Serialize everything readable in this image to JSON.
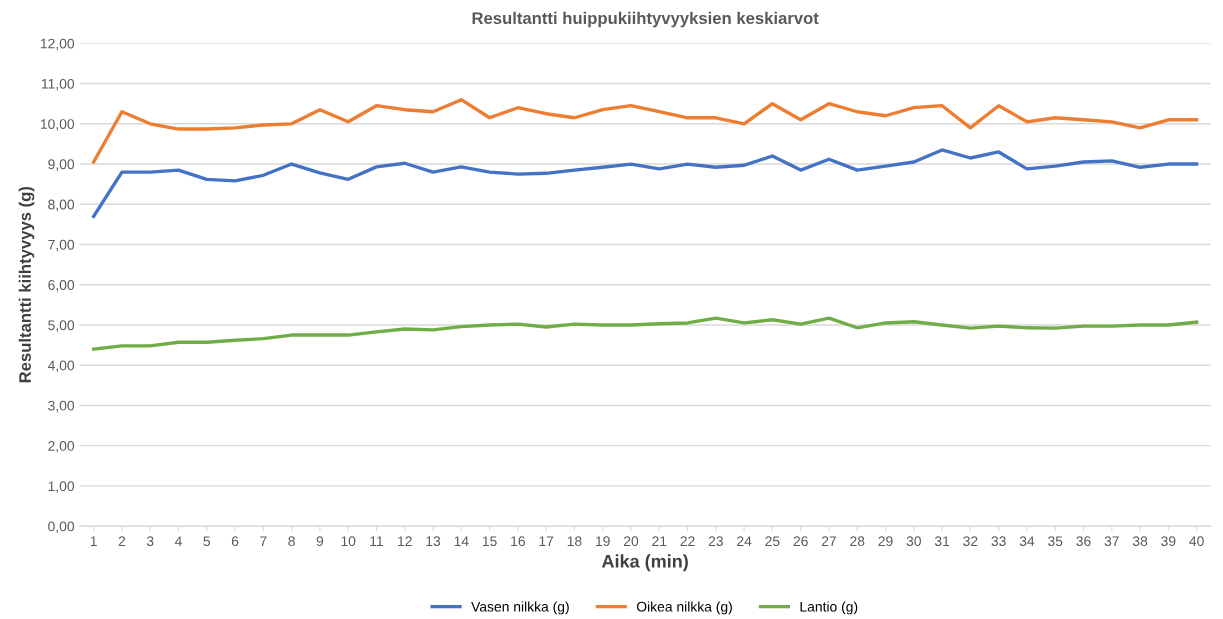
{
  "chart_data": {
    "type": "line",
    "title": "Resultantti huippukiihtyvyyksien keskiarvot",
    "xlabel": "Aika (min)",
    "ylabel": "Resultantti kiihtyvyys (g)",
    "categories": [
      "1",
      "2",
      "3",
      "4",
      "5",
      "6",
      "7",
      "8",
      "9",
      "10",
      "11",
      "12",
      "13",
      "14",
      "15",
      "16",
      "17",
      "18",
      "19",
      "20",
      "21",
      "22",
      "23",
      "24",
      "25",
      "26",
      "27",
      "28",
      "29",
      "30",
      "31",
      "32",
      "33",
      "34",
      "35",
      "36",
      "37",
      "38",
      "39",
      "40"
    ],
    "series": [
      {
        "name": "Vasen nilkka (g)",
        "color": "#4472c4",
        "values": [
          7.7,
          8.8,
          8.8,
          8.85,
          8.62,
          8.58,
          8.72,
          9.0,
          8.78,
          8.62,
          8.93,
          9.02,
          8.8,
          8.93,
          8.8,
          8.75,
          8.77,
          8.85,
          8.92,
          9.0,
          8.88,
          9.0,
          8.92,
          8.97,
          9.2,
          8.85,
          9.12,
          8.85,
          8.95,
          9.05,
          9.35,
          9.15,
          9.3,
          8.88,
          8.95,
          9.05,
          9.08,
          8.92,
          9.0,
          9.0
        ]
      },
      {
        "name": "Oikea nilkka (g)",
        "color": "#ed7d31",
        "values": [
          9.05,
          10.3,
          10.0,
          9.87,
          9.87,
          9.9,
          9.97,
          10.0,
          10.35,
          10.05,
          10.45,
          10.35,
          10.3,
          10.6,
          10.15,
          10.4,
          10.25,
          10.15,
          10.35,
          10.45,
          10.3,
          10.15,
          10.15,
          10.0,
          10.5,
          10.1,
          10.5,
          10.3,
          10.2,
          10.4,
          10.45,
          9.9,
          10.45,
          10.05,
          10.15,
          10.1,
          10.05,
          9.9,
          10.1,
          10.1
        ]
      },
      {
        "name": "Lantio (g)",
        "color": "#70ad47",
        "values": [
          4.4,
          4.48,
          4.48,
          4.57,
          4.57,
          4.62,
          4.66,
          4.75,
          4.75,
          4.75,
          4.83,
          4.9,
          4.88,
          4.96,
          5.0,
          5.02,
          4.95,
          5.02,
          5.0,
          5.0,
          5.03,
          5.05,
          5.17,
          5.05,
          5.13,
          5.02,
          5.17,
          4.93,
          5.05,
          5.08,
          5.0,
          4.92,
          4.97,
          4.93,
          4.92,
          4.97,
          4.97,
          5.0,
          5.0,
          5.07
        ]
      }
    ],
    "ylim": [
      0,
      12
    ],
    "yticks": [
      {
        "value": 0,
        "label": "0,00"
      },
      {
        "value": 1,
        "label": "1,00"
      },
      {
        "value": 2,
        "label": "2,00"
      },
      {
        "value": 3,
        "label": "3,00"
      },
      {
        "value": 4,
        "label": "4,00"
      },
      {
        "value": 5,
        "label": "5,00"
      },
      {
        "value": 6,
        "label": "6,00"
      },
      {
        "value": 7,
        "label": "7,00"
      },
      {
        "value": 8,
        "label": "8,00"
      },
      {
        "value": 9,
        "label": "9,00"
      },
      {
        "value": 10,
        "label": "10,00"
      },
      {
        "value": 11,
        "label": "11,00"
      },
      {
        "value": 12,
        "label": "12,00"
      }
    ],
    "grid": "y",
    "legend": "bottom",
    "marker": "none",
    "line_style": "solid"
  }
}
